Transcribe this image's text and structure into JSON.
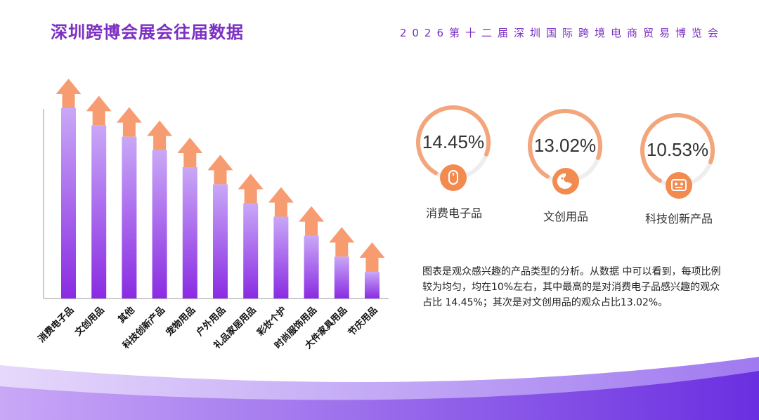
{
  "header": {
    "title": "深圳跨博会展会往届数据",
    "subtitle": "2026第十二届深圳国际跨境电商贸易博览会"
  },
  "chart_data": {
    "type": "bar",
    "title": "",
    "categories": [
      "消费电子品",
      "文创用品",
      "其他",
      "科技创新产品",
      "宠物用品",
      "户外用品",
      "礼品家居用品",
      "彩妆个护",
      "时尚服饰用品",
      "大件家具用品",
      "节庆用品"
    ],
    "values": [
      100,
      91,
      85,
      78,
      69,
      60,
      50,
      43,
      33,
      22,
      14
    ],
    "ylim": [
      0,
      100
    ],
    "xlabel": "",
    "ylabel": "",
    "grid": false,
    "colors": {
      "bar_top": "#c7a5f7",
      "bar_bottom": "#8a2be2",
      "arrow": "#f79b71"
    }
  },
  "highlights": [
    {
      "value": "14.45%",
      "label": "消费电子品",
      "icon": "mouse-icon",
      "percent": 14.45
    },
    {
      "value": "13.02%",
      "label": "文创用品",
      "icon": "palette-icon",
      "percent": 13.02
    },
    {
      "value": "10.53%",
      "label": "科技创新产品",
      "icon": "robot-icon",
      "percent": 10.53
    }
  ],
  "description": "图表是观众感兴趣的产品类型的分析。从数据 中可以看到，每项比例较为均匀，均在10%左右，其中最高的是对消费电子品感兴趣的观众 占比 14.45%；其次是对文创用品的观众占比13.02%。",
  "colors": {
    "accent": "#7b2fc4",
    "orange": "#f28b50",
    "ring_track": "#eeeeee"
  }
}
